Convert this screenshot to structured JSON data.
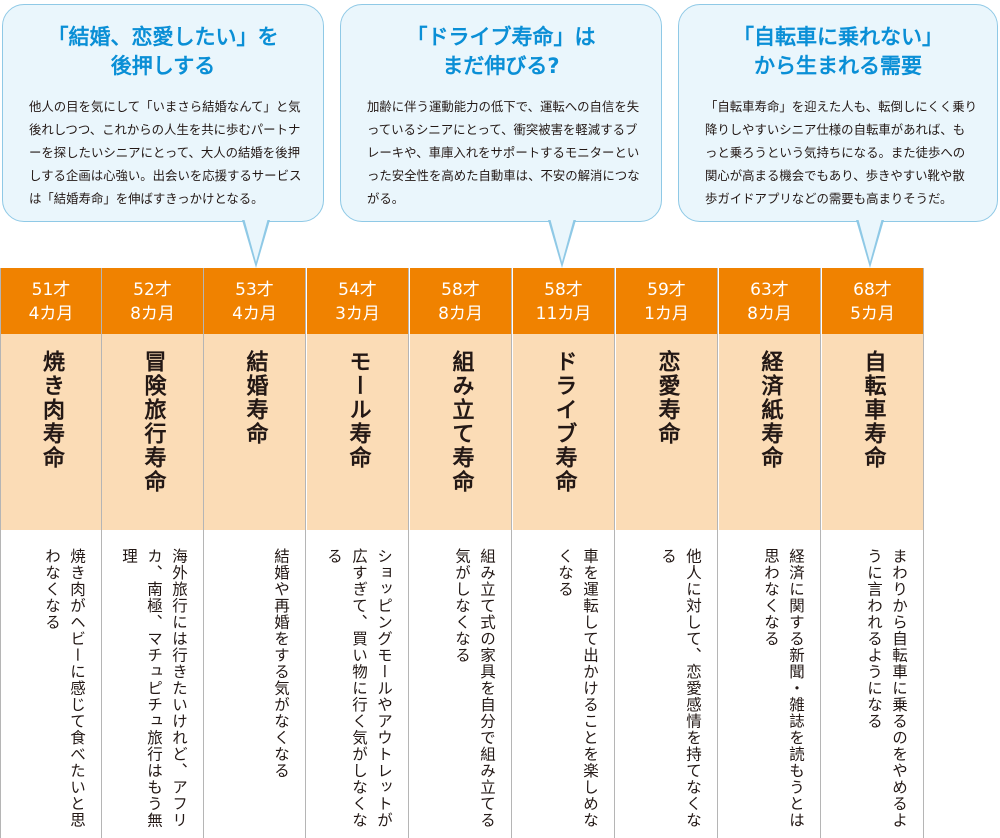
{
  "bubbles": [
    {
      "title": "「結婚、恋愛したい」を\n後押しする",
      "body": "他人の目を気にして「いまさら結婚なんて」と気後れしつつ、これからの人生を共に歩むパートナーを探したいシニアにとって、大人の結婚を後押しする企画は心強い。出会いを応援するサービスは「結婚寿命」を伸ばすきっかけとなる。"
    },
    {
      "title": "「ドライブ寿命」は\nまだ伸びる?",
      "body": "加齢に伴う運動能力の低下で、運転への自信を失っているシニアにとって、衝突被害を軽減するブレーキや、車庫入れをサポートするモニターといった安全性を高めた自動車は、不安の解消につながる。"
    },
    {
      "title": "「自転車に乗れない」\nから生まれる需要",
      "body": "「自転車寿命」を迎えた人も、転倒しにくく乗り降りしやすいシニア仕様の自転車があれば、もっと乗ろうという気持ちになる。また徒歩への関心が高まる機会でもあり、歩きやすい靴や散歩ガイドアプリなどの需要も高まりそうだ。"
    }
  ],
  "columns": [
    {
      "age": "51才",
      "months": "4カ月",
      "name": "焼き肉寿命",
      "desc": "焼き肉がヘビーに感じて食べたいと思わなくなる"
    },
    {
      "age": "52才",
      "months": "8カ月",
      "name": "冒険旅行寿命",
      "desc": "海外旅行には行きたいけれど、アフリカ、南極、マチュピチュ旅行はもう無理"
    },
    {
      "age": "53才",
      "months": "4カ月",
      "name": "結婚寿命",
      "desc": "結婚や再婚をする気がなくなる"
    },
    {
      "age": "54才",
      "months": "3カ月",
      "name": "モール寿命",
      "desc": "ショッピングモールやアウトレットが広すぎて、買い物に行く気がしなくなる"
    },
    {
      "age": "58才",
      "months": "8カ月",
      "name": "組み立て寿命",
      "desc": "組み立て式の家具を自分で組み立てる気がしなくなる"
    },
    {
      "age": "58才",
      "months": "11カ月",
      "name": "ドライブ寿命",
      "desc": "車を運転して出かけることを楽しめなくなる"
    },
    {
      "age": "59才",
      "months": "1カ月",
      "name": "恋愛寿命",
      "desc": "他人に対して、恋愛感情を持てなくなる"
    },
    {
      "age": "63才",
      "months": "8カ月",
      "name": "経済紙寿命",
      "desc": "経済に関する新聞・雑誌を読もうとは思わなくなる"
    },
    {
      "age": "68才",
      "months": "5カ月",
      "name": "自転車寿命",
      "desc": "まわりから自転車に乗るのをやめるように言われるようになる"
    }
  ]
}
